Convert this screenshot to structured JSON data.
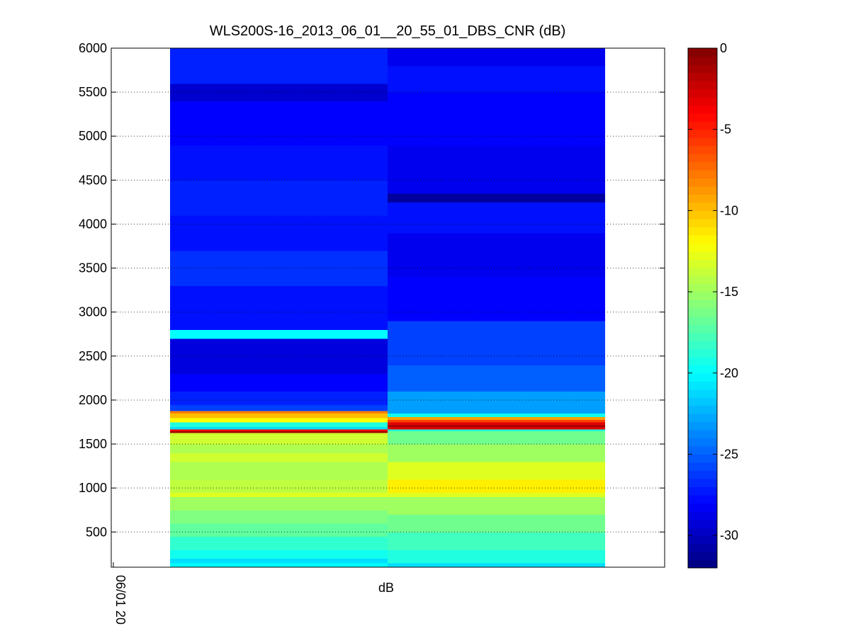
{
  "chart_data": {
    "type": "heatmap",
    "title": "WLS200S-16_2013_06_01__20_55_01_DBS_CNR (dB)",
    "xlabel": "dB",
    "x_tick_labels": [
      "06/01 20"
    ],
    "ylabel": "",
    "ylim": [
      100,
      6000
    ],
    "y_ticks": [
      500,
      1000,
      1500,
      2000,
      2500,
      3000,
      3500,
      4000,
      4500,
      5000,
      5500,
      6000
    ],
    "grid": true,
    "colormap": "jet",
    "color_range": [
      -32,
      0
    ],
    "colorbar": {
      "placement": "right",
      "ticks": [
        0,
        -5,
        -10,
        -15,
        -20,
        -25,
        -30
      ]
    },
    "columns": [
      {
        "segments": [
          {
            "y0": 100,
            "y1": 150,
            "value": -20.0
          },
          {
            "y0": 150,
            "y1": 200,
            "value": -21.0
          },
          {
            "y0": 200,
            "y1": 300,
            "value": -19.5
          },
          {
            "y0": 300,
            "y1": 450,
            "value": -18.5
          },
          {
            "y0": 450,
            "y1": 600,
            "value": -17.0
          },
          {
            "y0": 600,
            "y1": 750,
            "value": -16.0
          },
          {
            "y0": 750,
            "y1": 900,
            "value": -15.0
          },
          {
            "y0": 900,
            "y1": 950,
            "value": -13.0
          },
          {
            "y0": 950,
            "y1": 1100,
            "value": -14.0
          },
          {
            "y0": 1100,
            "y1": 1300,
            "value": -14.5
          },
          {
            "y0": 1300,
            "y1": 1400,
            "value": -13.5
          },
          {
            "y0": 1400,
            "y1": 1500,
            "value": -14.5
          },
          {
            "y0": 1500,
            "y1": 1630,
            "value": -13.5
          },
          {
            "y0": 1630,
            "y1": 1650,
            "value": -1.0
          },
          {
            "y0": 1650,
            "y1": 1670,
            "value": -4.0
          },
          {
            "y0": 1670,
            "y1": 1700,
            "value": -21.0
          },
          {
            "y0": 1700,
            "y1": 1750,
            "value": -19.0
          },
          {
            "y0": 1750,
            "y1": 1800,
            "value": -12.0
          },
          {
            "y0": 1800,
            "y1": 1850,
            "value": -10.0
          },
          {
            "y0": 1850,
            "y1": 1880,
            "value": -8.0
          },
          {
            "y0": 1880,
            "y1": 1950,
            "value": -26.0
          },
          {
            "y0": 1950,
            "y1": 2100,
            "value": -27.0
          },
          {
            "y0": 2100,
            "y1": 2300,
            "value": -28.0
          },
          {
            "y0": 2300,
            "y1": 2700,
            "value": -29.0
          },
          {
            "y0": 2700,
            "y1": 2800,
            "value": -20.0
          },
          {
            "y0": 2800,
            "y1": 3300,
            "value": -27.5
          },
          {
            "y0": 3300,
            "y1": 3700,
            "value": -26.5
          },
          {
            "y0": 3700,
            "y1": 4100,
            "value": -27.5
          },
          {
            "y0": 4100,
            "y1": 4500,
            "value": -27.0
          },
          {
            "y0": 4500,
            "y1": 4900,
            "value": -27.5
          },
          {
            "y0": 4900,
            "y1": 5400,
            "value": -28.0
          },
          {
            "y0": 5400,
            "y1": 5600,
            "value": -29.5
          },
          {
            "y0": 5600,
            "y1": 6000,
            "value": -27.0
          }
        ]
      },
      {
        "segments": [
          {
            "y0": 100,
            "y1": 150,
            "value": -21.0
          },
          {
            "y0": 150,
            "y1": 300,
            "value": -19.0
          },
          {
            "y0": 300,
            "y1": 500,
            "value": -18.0
          },
          {
            "y0": 500,
            "y1": 700,
            "value": -16.5
          },
          {
            "y0": 700,
            "y1": 900,
            "value": -15.0
          },
          {
            "y0": 900,
            "y1": 950,
            "value": -13.0
          },
          {
            "y0": 950,
            "y1": 1100,
            "value": -11.5
          },
          {
            "y0": 1100,
            "y1": 1300,
            "value": -13.0
          },
          {
            "y0": 1300,
            "y1": 1500,
            "value": -15.0
          },
          {
            "y0": 1500,
            "y1": 1650,
            "value": -16.5
          },
          {
            "y0": 1650,
            "y1": 1670,
            "value": -19.0
          },
          {
            "y0": 1670,
            "y1": 1700,
            "value": -3.0
          },
          {
            "y0": 1700,
            "y1": 1720,
            "value": -1.0
          },
          {
            "y0": 1720,
            "y1": 1750,
            "value": -3.0
          },
          {
            "y0": 1750,
            "y1": 1780,
            "value": -6.0
          },
          {
            "y0": 1780,
            "y1": 1810,
            "value": -9.0
          },
          {
            "y0": 1810,
            "y1": 1850,
            "value": -19.5
          },
          {
            "y0": 1850,
            "y1": 2100,
            "value": -23.0
          },
          {
            "y0": 2100,
            "y1": 2400,
            "value": -25.0
          },
          {
            "y0": 2400,
            "y1": 2900,
            "value": -26.0
          },
          {
            "y0": 2900,
            "y1": 3400,
            "value": -28.0
          },
          {
            "y0": 3400,
            "y1": 3900,
            "value": -28.5
          },
          {
            "y0": 3900,
            "y1": 4250,
            "value": -27.5
          },
          {
            "y0": 4250,
            "y1": 4350,
            "value": -31.0
          },
          {
            "y0": 4350,
            "y1": 4900,
            "value": -28.5
          },
          {
            "y0": 4900,
            "y1": 5500,
            "value": -28.0
          },
          {
            "y0": 5500,
            "y1": 5800,
            "value": -27.5
          },
          {
            "y0": 5800,
            "y1": 6000,
            "value": -28.5
          }
        ]
      }
    ]
  }
}
